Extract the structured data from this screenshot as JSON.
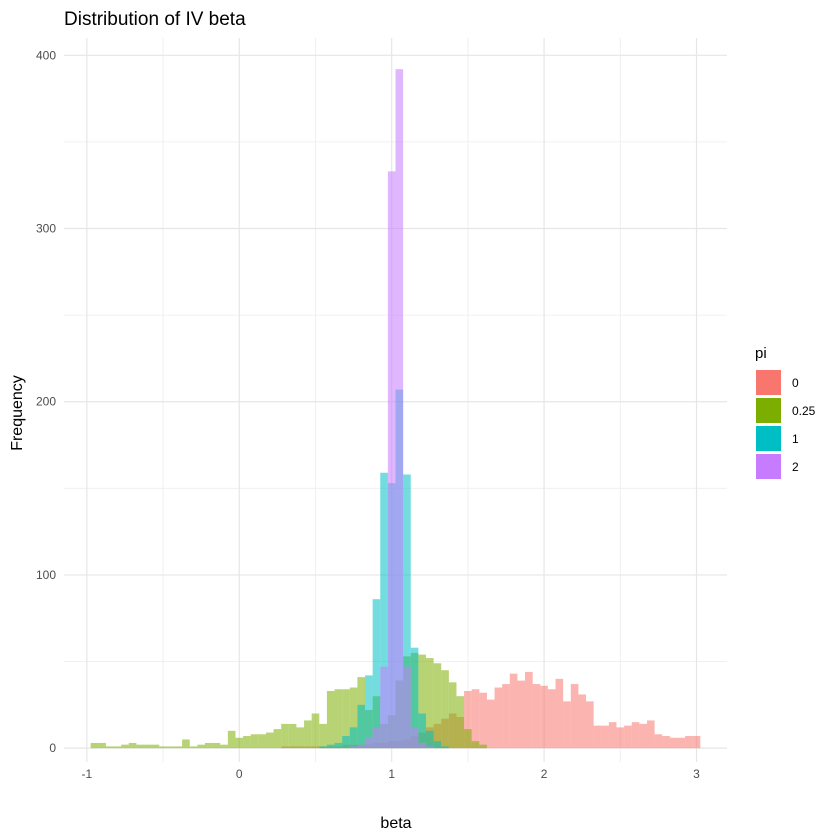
{
  "chart_data": {
    "type": "bar",
    "subtype": "overlaid histogram",
    "title": "Distribution of IV beta",
    "xlabel": "beta",
    "ylabel": "Frequency",
    "xlim": [
      -1.15,
      3.2
    ],
    "ylim": [
      -8,
      410
    ],
    "x_ticks": [
      -1,
      0,
      1,
      2,
      3
    ],
    "y_ticks": [
      0,
      100,
      200,
      300,
      400
    ],
    "grid": true,
    "legend": {
      "title": "pi",
      "position": "right"
    },
    "bin_width": 0.05,
    "bar_opacity": 0.55,
    "series": [
      {
        "name": "0",
        "color": "#F8766D",
        "x": [
          0.3,
          0.35,
          0.4,
          0.45,
          0.5,
          0.55,
          0.6,
          0.65,
          0.7,
          0.75,
          0.8,
          0.85,
          0.9,
          0.95,
          1.0,
          1.05,
          1.1,
          1.15,
          1.2,
          1.25,
          1.3,
          1.35,
          1.4,
          1.45,
          1.5,
          1.55,
          1.6,
          1.65,
          1.7,
          1.75,
          1.8,
          1.85,
          1.9,
          1.95,
          2.0,
          2.05,
          2.1,
          2.15,
          2.2,
          2.25,
          2.3,
          2.35,
          2.4,
          2.45,
          2.5,
          2.55,
          2.6,
          2.65,
          2.7,
          2.75,
          2.8,
          2.85,
          2.9,
          2.95,
          3.0
        ],
        "values": [
          1,
          1,
          1,
          1,
          1,
          1,
          1,
          1,
          2,
          2,
          2,
          2,
          3,
          3,
          4,
          4,
          5,
          7,
          9,
          12,
          14,
          17,
          20,
          18,
          33,
          34,
          32,
          28,
          35,
          37,
          43,
          39,
          44,
          37,
          36,
          34,
          40,
          27,
          37,
          31,
          27,
          13,
          13,
          15,
          12,
          13,
          15,
          14,
          16,
          8,
          7,
          6,
          6,
          7,
          7
        ]
      },
      {
        "name": "0.25",
        "color": "#7CAE00",
        "x": [
          -0.95,
          -0.9,
          -0.85,
          -0.8,
          -0.75,
          -0.7,
          -0.65,
          -0.6,
          -0.55,
          -0.5,
          -0.45,
          -0.4,
          -0.35,
          -0.3,
          -0.25,
          -0.2,
          -0.15,
          -0.1,
          -0.05,
          0.0,
          0.05,
          0.1,
          0.15,
          0.2,
          0.25,
          0.3,
          0.35,
          0.4,
          0.45,
          0.5,
          0.55,
          0.6,
          0.65,
          0.7,
          0.75,
          0.8,
          0.85,
          0.9,
          0.95,
          1.0,
          1.05,
          1.1,
          1.15,
          1.2,
          1.25,
          1.3,
          1.35,
          1.4,
          1.45,
          1.5,
          1.55,
          1.6
        ],
        "values": [
          3,
          3,
          1,
          1,
          2,
          3,
          2,
          2,
          2,
          1,
          1,
          1,
          5,
          1,
          2,
          3,
          3,
          2,
          10,
          6,
          7,
          8,
          8,
          9,
          11,
          14,
          14,
          12,
          16,
          20,
          14,
          33,
          34,
          34,
          35,
          41,
          22,
          30,
          14,
          19,
          39,
          53,
          55,
          54,
          52,
          49,
          45,
          38,
          30,
          11,
          4,
          2
        ]
      },
      {
        "name": "1",
        "color": "#00BFC4",
        "x": [
          0.55,
          0.6,
          0.65,
          0.7,
          0.75,
          0.8,
          0.85,
          0.9,
          0.95,
          1.0,
          1.05,
          1.1,
          1.15,
          1.2,
          1.25,
          1.3,
          1.35
        ],
        "values": [
          1,
          2,
          3,
          7,
          12,
          25,
          42,
          86,
          159,
          153,
          207,
          158,
          58,
          20,
          10,
          4,
          1
        ]
      },
      {
        "name": "2",
        "color": "#C77CFF",
        "x": [
          0.75,
          0.8,
          0.85,
          0.9,
          0.95,
          1.0,
          1.05,
          1.1,
          1.15,
          1.2,
          1.25
        ],
        "values": [
          1,
          2,
          6,
          12,
          47,
          333,
          392,
          47,
          12,
          3,
          1
        ]
      }
    ]
  }
}
